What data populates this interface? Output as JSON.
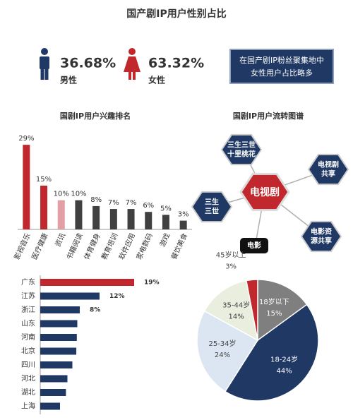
{
  "header": {
    "title": "国产剧IP用户性别占比"
  },
  "gender": {
    "stats": [
      {
        "value": "36.68%",
        "label": "男性",
        "color": "#1f3864"
      },
      {
        "value": "63.32%",
        "label": "女性",
        "color": "#c0282d"
      }
    ],
    "note": [
      "在国产剧IP粉丝聚集地中",
      "女性用户占比略多"
    ]
  },
  "flow": {
    "title": "国剧IP用户流转图谱",
    "center": "电视剧",
    "nodes": [
      {
        "label": [
          "三生三世",
          "十里桃花"
        ]
      },
      {
        "label": [
          "电视剧",
          "共享"
        ]
      },
      {
        "label": [
          "三生",
          "三世"
        ]
      },
      {
        "label": [
          "电影"
        ]
      },
      {
        "label": [
          "电影资",
          "源共享"
        ]
      }
    ]
  },
  "chart_data": [
    {
      "type": "bar",
      "title": "国剧IP用户兴趣排名",
      "categories": [
        "影视音乐",
        "医疗健康",
        "资讯",
        "书籍阅读",
        "体育健身",
        "教育培训",
        "软件应用",
        "家电数码",
        "游戏",
        "餐饮美食"
      ],
      "values": [
        29,
        15,
        10,
        10,
        8,
        7,
        7,
        6,
        5,
        3
      ],
      "value_labels": [
        "29%",
        "15%",
        "10%",
        "10%",
        "8%",
        "7%",
        "7%",
        "6%",
        "5%",
        "3%"
      ],
      "colors": [
        "#c0282d",
        "#c0282d",
        "#e0a0a4",
        "#404040",
        "#404040",
        "#404040",
        "#404040",
        "#404040",
        "#404040",
        "#404040"
      ],
      "ylim": [
        0,
        30
      ]
    },
    {
      "type": "hbar",
      "categories": [
        "广东",
        "江苏",
        "浙江",
        "山东",
        "河南",
        "北京",
        "四川",
        "河北",
        "湖北",
        "上海"
      ],
      "values": [
        19,
        12,
        8,
        7.5,
        7.4,
        7.3,
        6.5,
        5.5,
        5.2,
        4
      ],
      "value_labels": [
        "19%",
        "12%",
        "8%",
        null,
        null,
        null,
        null,
        null,
        null,
        null
      ],
      "colors": [
        "#c0282d",
        "#1f3864",
        "#1f3864",
        "#1f3864",
        "#1f3864",
        "#1f3864",
        "#1f3864",
        "#1f3864",
        "#1f3864",
        "#1f3864"
      ],
      "xlim": [
        0,
        20
      ]
    },
    {
      "type": "pie",
      "categories": [
        "18岁以下",
        "18-24岁",
        "25-34岁",
        "35-44岁",
        "45岁以上"
      ],
      "values": [
        15,
        44,
        24,
        14,
        3
      ],
      "value_labels": [
        "15%",
        "44%",
        "24%",
        "14%",
        "3%"
      ],
      "colors": [
        "#7f7f7f",
        "#1f3864",
        "#dce6f2",
        "#e9eedf",
        "#c0282d"
      ]
    }
  ]
}
